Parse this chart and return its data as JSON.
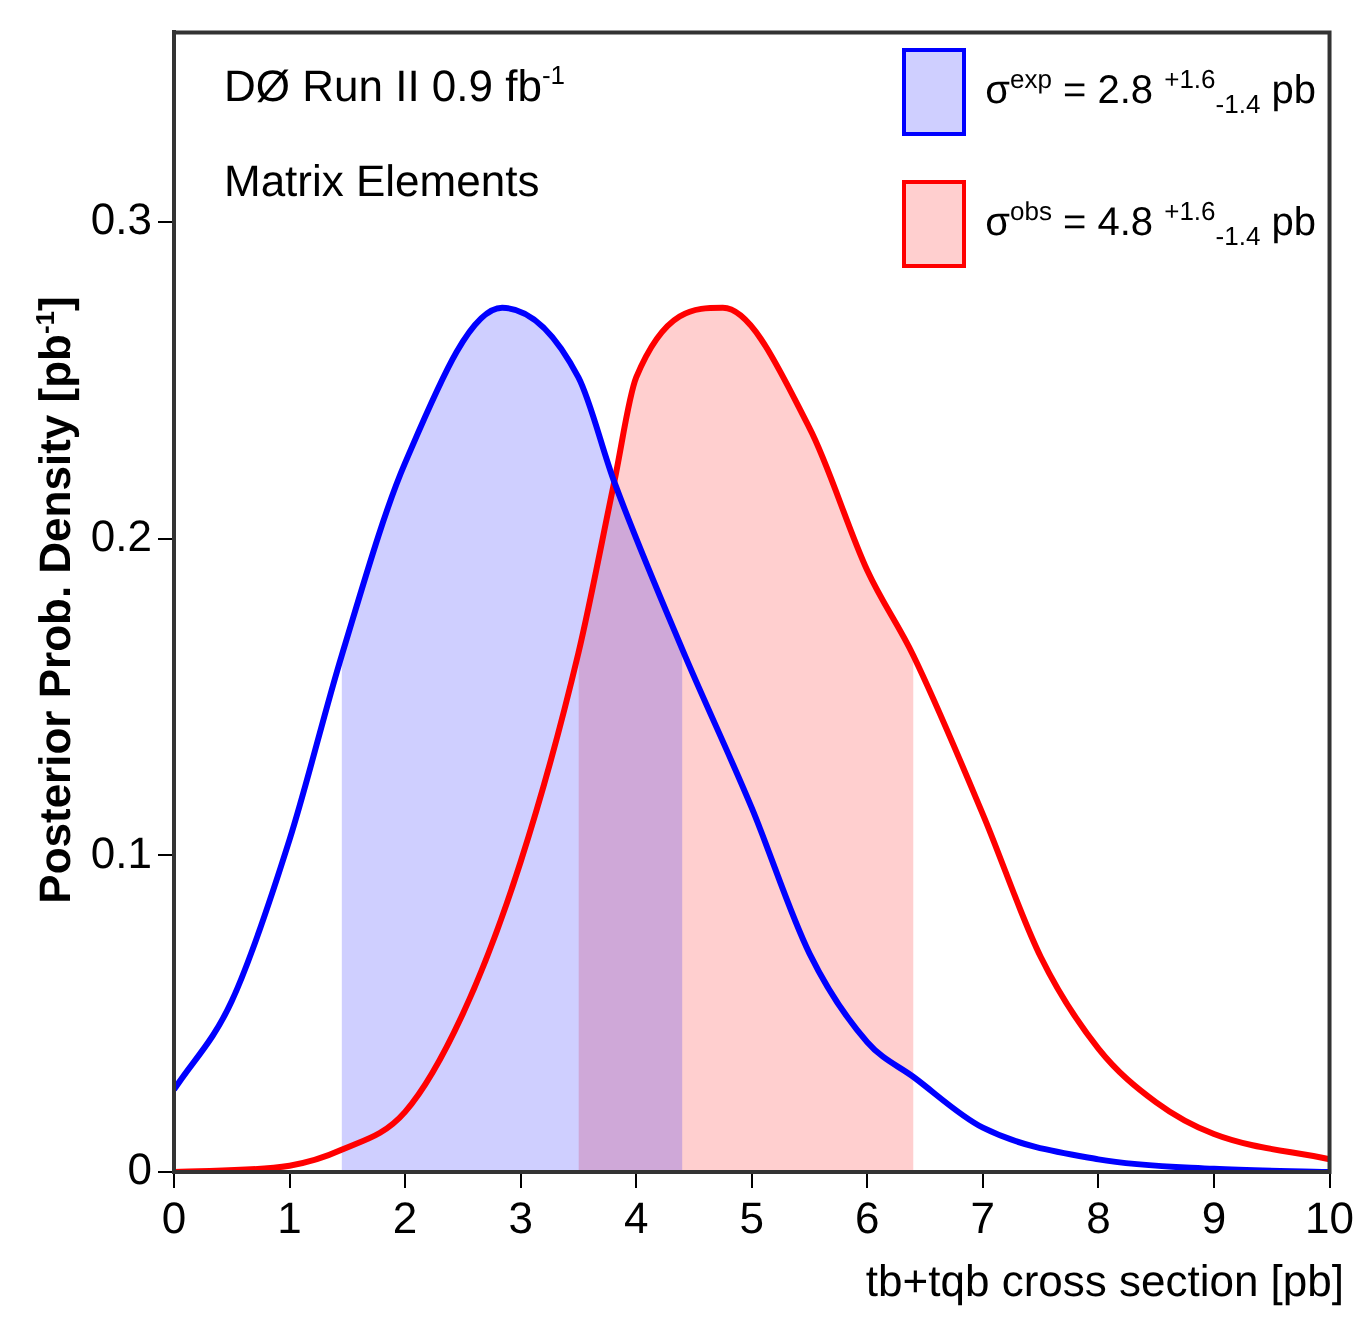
{
  "chart_data": {
    "type": "line",
    "xlabel": "tb+tqb cross section [pb]",
    "ylabel": "Posterior Prob. Density [pb$^{-1}$]",
    "annotations": [
      "DØ Run II   0.9 fb$^{-1}$",
      "Matrix Elements"
    ],
    "xlim": [
      0,
      10
    ],
    "ylim": [
      0,
      0.36
    ],
    "xticks": [
      0,
      1,
      2,
      3,
      4,
      5,
      6,
      7,
      8,
      9,
      10
    ],
    "yticks": [
      0,
      0.1,
      0.2,
      0.3
    ],
    "grid": false,
    "legend": "top right",
    "marker": "none",
    "line_style": "solid",
    "series": [
      {
        "color": "#0000ff",
        "x": [
          0,
          0.5,
          1,
          1.45,
          2,
          2.84,
          3.5,
          3.81,
          4.4,
          5,
          5.5,
          6,
          6.4,
          7,
          8,
          9,
          10
        ],
        "values": [
          0.026,
          0.054,
          0.105,
          0.163,
          0.224,
          0.273,
          0.251,
          0.218,
          0.165,
          0.115,
          0.069,
          0.041,
          0.03,
          0.014,
          0.004,
          0.001,
          0
        ]
      },
      {
        "color": "#ff0000",
        "x": [
          0,
          1,
          1.45,
          2,
          2.5,
          3,
          3.5,
          3.81,
          4,
          4.75,
          5.5,
          6,
          6.4,
          7,
          7.5,
          8,
          8.5,
          9,
          10
        ],
        "values": [
          0,
          0.002,
          0.007,
          0.019,
          0.05,
          0.098,
          0.164,
          0.218,
          0.251,
          0.273,
          0.235,
          0.19,
          0.163,
          0.113,
          0.068,
          0.039,
          0.022,
          0.012,
          0.004
        ]
      },
      {
        "type": "area",
        "name": "σ$^{exp}$ = 2.8 $^{+1.6}$$_{-1.4}$ pb",
        "color": "#0000ff",
        "x": [
          1.45,
          2,
          2.84,
          3.5,
          3.81,
          4.4
        ],
        "values": [
          0.163,
          0.224,
          0.273,
          0.251,
          0.218,
          0.165
        ]
      },
      {
        "type": "area",
        "name": "σ$^{obs}$ = 4.8 $^{+1.6}$$_{-1.4}$ pb",
        "color": "#ff0000",
        "x": [
          3.5,
          3.81,
          4,
          4.75,
          5.5,
          6,
          6.4
        ],
        "values": [
          0.164,
          0.218,
          0.251,
          0.273,
          0.235,
          0.19,
          0.163
        ]
      }
    ]
  }
}
